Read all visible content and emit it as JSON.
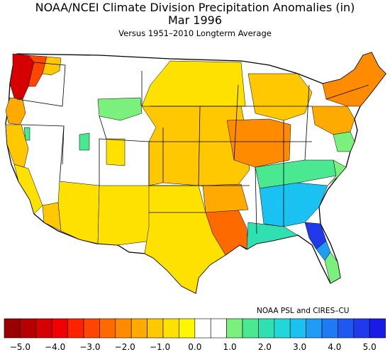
{
  "header": {
    "title": "NOAA/NCEI Climate Division Precipitation Anomalies (in)",
    "subtitle": "Mar 1996",
    "period": "Versus 1951–2010 Longterm Average"
  },
  "credit": "NOAA PSL and CIRES–CU",
  "colorbar": {
    "colors": [
      "#990000",
      "#b70000",
      "#d50000",
      "#f00000",
      "#ff2200",
      "#ff4600",
      "#ff6a00",
      "#ff8c00",
      "#ffaa00",
      "#ffc800",
      "#ffe100",
      "#fff700",
      "#ffffff",
      "#ffffff",
      "#7cf07c",
      "#4ae890",
      "#30e0b0",
      "#20d8d8",
      "#19c2f0",
      "#1f9df5",
      "#1e7af5",
      "#1e58f0",
      "#1f39eb",
      "#1a1ae6"
    ],
    "ticks": [
      "−5.0",
      "−4.0",
      "−3.0",
      "−2.0",
      "−1.0",
      "0.0",
      "1.0",
      "2.0",
      "3.0",
      "4.0",
      "5.0"
    ]
  },
  "regions": [
    {
      "name": "Pacific Northwest coast",
      "color": "#d50000"
    },
    {
      "name": "Western Washington",
      "color": "#ff4600"
    },
    {
      "name": "Oregon / California coast",
      "color": "#ffaa00"
    },
    {
      "name": "Great Plains",
      "color": "#ffc800"
    },
    {
      "name": "Ohio Valley",
      "color": "#ff8c00"
    },
    {
      "name": "New England",
      "color": "#ff8c00"
    },
    {
      "name": "Lower Mississippi / Louisiana",
      "color": "#ff6a00"
    },
    {
      "name": "Southeast",
      "color": "#19c2f0"
    },
    {
      "name": "North Florida",
      "color": "#1f39eb"
    },
    {
      "name": "Northern Rockies",
      "color": "#7cf07c"
    }
  ]
}
